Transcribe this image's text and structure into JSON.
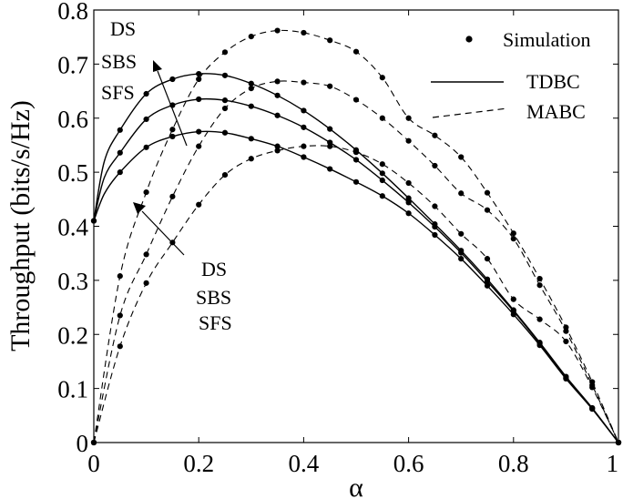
{
  "chart_data": {
    "type": "line",
    "xlabel": "α",
    "ylabel": "Throughput (bits/s/Hz)",
    "xlim": [
      0,
      1
    ],
    "ylim": [
      0,
      0.8
    ],
    "xticks": [
      0,
      0.2,
      0.4,
      0.6,
      0.8,
      1
    ],
    "xtick_labels": [
      "0",
      "0.2",
      "0.4",
      "0.6",
      "0.8",
      "1"
    ],
    "yticks": [
      0,
      0.1,
      0.2,
      0.3,
      0.4,
      0.5,
      0.6,
      0.7,
      0.8
    ],
    "ytick_labels": [
      "0",
      "0.1",
      "0.2",
      "0.3",
      "0.4",
      "0.5",
      "0.6",
      "0.7",
      "0.8"
    ],
    "grid": false,
    "legend_position": "top-right",
    "legend": [
      {
        "label": "Simulation",
        "style": "marker"
      },
      {
        "label": "TDBC",
        "style": "solid"
      },
      {
        "label": "MABC",
        "style": "dashed"
      }
    ],
    "annotations": {
      "tdbc_group": [
        "DS",
        "SBS",
        "SFS"
      ],
      "mabc_group": [
        "DS",
        "SBS",
        "SFS"
      ]
    },
    "sim_x": [
      0,
      0.05,
      0.1,
      0.15,
      0.2,
      0.25,
      0.3,
      0.35,
      0.4,
      0.45,
      0.5,
      0.55,
      0.6,
      0.65,
      0.7,
      0.75,
      0.8,
      0.85,
      0.9,
      0.95,
      1
    ],
    "series": [
      {
        "family": "TDBC",
        "scheme": "DS",
        "x": [
          0,
          0.02,
          0.05,
          0.1,
          0.15,
          0.2,
          0.25,
          0.3,
          0.35,
          0.4,
          0.45,
          0.5,
          0.55,
          0.6,
          0.65,
          0.7,
          0.75,
          0.8,
          0.85,
          0.9,
          0.95,
          1
        ],
        "y": [
          0.41,
          0.52,
          0.578,
          0.645,
          0.672,
          0.682,
          0.679,
          0.664,
          0.642,
          0.614,
          0.58,
          0.541,
          0.498,
          0.452,
          0.404,
          0.355,
          0.302,
          0.245,
          0.185,
          0.122,
          0.064,
          0
        ]
      },
      {
        "family": "TDBC",
        "scheme": "SBS",
        "x": [
          0,
          0.02,
          0.05,
          0.1,
          0.15,
          0.2,
          0.25,
          0.3,
          0.35,
          0.4,
          0.45,
          0.5,
          0.55,
          0.6,
          0.65,
          0.7,
          0.75,
          0.8,
          0.85,
          0.9,
          0.95,
          1
        ],
        "y": [
          0.41,
          0.49,
          0.536,
          0.598,
          0.624,
          0.635,
          0.633,
          0.622,
          0.605,
          0.583,
          0.555,
          0.523,
          0.485,
          0.444,
          0.399,
          0.351,
          0.298,
          0.243,
          0.183,
          0.12,
          0.063,
          0
        ]
      },
      {
        "family": "TDBC",
        "scheme": "SFS",
        "x": [
          0,
          0.02,
          0.05,
          0.1,
          0.15,
          0.2,
          0.25,
          0.3,
          0.35,
          0.4,
          0.45,
          0.5,
          0.55,
          0.6,
          0.65,
          0.7,
          0.75,
          0.8,
          0.85,
          0.9,
          0.95,
          1
        ],
        "y": [
          0.41,
          0.46,
          0.5,
          0.546,
          0.566,
          0.575,
          0.573,
          0.562,
          0.548,
          0.528,
          0.506,
          0.482,
          0.456,
          0.424,
          0.384,
          0.34,
          0.29,
          0.237,
          0.18,
          0.118,
          0.062,
          0
        ]
      },
      {
        "family": "MABC",
        "scheme": "DS",
        "x": [
          0,
          0.05,
          0.1,
          0.15,
          0.2,
          0.25,
          0.3,
          0.35,
          0.4,
          0.45,
          0.5,
          0.55,
          0.6,
          0.65,
          0.7,
          0.75,
          0.8,
          0.85,
          0.9,
          0.95,
          1
        ],
        "y": [
          0,
          0.308,
          0.463,
          0.579,
          0.672,
          0.722,
          0.751,
          0.762,
          0.758,
          0.744,
          0.723,
          0.675,
          0.6,
          0.568,
          0.528,
          0.462,
          0.387,
          0.303,
          0.213,
          0.112,
          0
        ]
      },
      {
        "family": "MABC",
        "scheme": "SBS",
        "x": [
          0,
          0.05,
          0.1,
          0.15,
          0.2,
          0.25,
          0.3,
          0.35,
          0.4,
          0.45,
          0.5,
          0.55,
          0.6,
          0.65,
          0.7,
          0.75,
          0.8,
          0.85,
          0.9,
          0.95,
          1
        ],
        "y": [
          0,
          0.235,
          0.348,
          0.455,
          0.548,
          0.618,
          0.655,
          0.668,
          0.666,
          0.659,
          0.634,
          0.6,
          0.558,
          0.512,
          0.461,
          0.43,
          0.377,
          0.291,
          0.206,
          0.106,
          0
        ]
      },
      {
        "family": "MABC",
        "scheme": "SFS",
        "x": [
          0,
          0.05,
          0.1,
          0.15,
          0.2,
          0.25,
          0.3,
          0.35,
          0.4,
          0.45,
          0.5,
          0.55,
          0.6,
          0.65,
          0.7,
          0.75,
          0.8,
          0.85,
          0.9,
          0.95,
          1
        ],
        "y": [
          0,
          0.178,
          0.295,
          0.37,
          0.44,
          0.495,
          0.525,
          0.54,
          0.548,
          0.548,
          0.537,
          0.515,
          0.48,
          0.437,
          0.386,
          0.34,
          0.265,
          0.228,
          0.187,
          0.102,
          0
        ]
      }
    ]
  }
}
